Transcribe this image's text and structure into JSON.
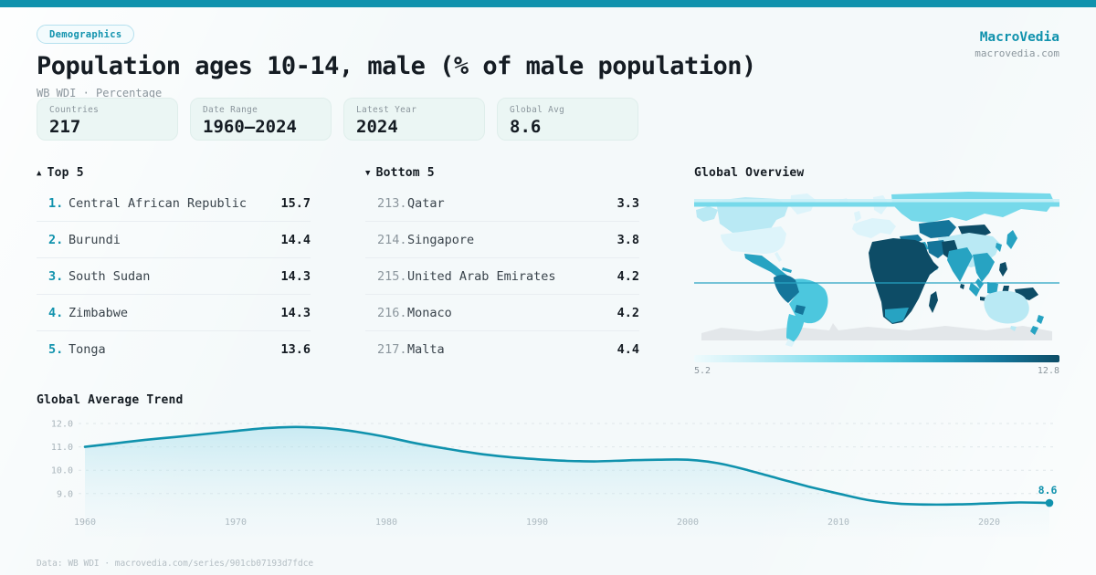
{
  "theme": {
    "accent": "#1092ad",
    "page_bg": "#f4f9fa",
    "text_dark": "#151c23",
    "text_row": "#39434b",
    "text_gray": "#8b969d",
    "text_light": "#b3bdc3",
    "card_bg": "#ebf6f4",
    "card_border": "#dfeeeb",
    "separator": "#e9eef2",
    "grid": "#dfe7ea",
    "tick": "#a9b4bb",
    "badge_bg": "#f3fbfd",
    "badge_border": "#b5e0ee",
    "map_pale": "#ddf4fa",
    "map_light": "#b9e9f4",
    "map_cyan": "#76d9ea",
    "map_midcyan": "#4cc7de",
    "map_mid": "#27a3c2",
    "map_middark": "#14759a",
    "map_dark": "#0d4c66",
    "map_ice": "#e3e7ea"
  },
  "header": {
    "badge": "Demographics",
    "title": "Population ages 10-14, male (% of male population)",
    "subtitle": "WB WDI · Percentage",
    "brand_name": "MacroVedia",
    "brand_domain": "macrovedia.com"
  },
  "stats": [
    {
      "label": "Countries",
      "value": "217"
    },
    {
      "label": "Date Range",
      "value": "1960—2024"
    },
    {
      "label": "Latest Year",
      "value": "2024"
    },
    {
      "label": "Global Avg",
      "value": "8.6"
    }
  ],
  "top5": {
    "marker": "▲",
    "title": "Top 5",
    "rows": [
      {
        "rank": "1.",
        "name": "Central African Republic",
        "value": "15.7"
      },
      {
        "rank": "2.",
        "name": "Burundi",
        "value": "14.4"
      },
      {
        "rank": "3.",
        "name": "South Sudan",
        "value": "14.3"
      },
      {
        "rank": "4.",
        "name": "Zimbabwe",
        "value": "14.3"
      },
      {
        "rank": "5.",
        "name": "Tonga",
        "value": "13.6"
      }
    ]
  },
  "bottom5": {
    "marker": "▼",
    "title": "Bottom 5",
    "rows": [
      {
        "rank": "213.",
        "name": "Qatar",
        "value": "3.3"
      },
      {
        "rank": "214.",
        "name": "Singapore",
        "value": "3.8"
      },
      {
        "rank": "215.",
        "name": "United Arab Emirates",
        "value": "4.2"
      },
      {
        "rank": "216.",
        "name": "Monaco",
        "value": "4.2"
      },
      {
        "rank": "217.",
        "name": "Malta",
        "value": "4.4"
      }
    ]
  },
  "map": {
    "title": "Global Overview",
    "legend_min": "5.2",
    "legend_max": "12.8"
  },
  "chart_data": {
    "type": "line",
    "title": "Global Average Trend",
    "xlabel": "",
    "ylabel": "",
    "x": [
      1960,
      1962,
      1964,
      1966,
      1968,
      1970,
      1972,
      1974,
      1976,
      1978,
      1980,
      1982,
      1984,
      1986,
      1988,
      1990,
      1992,
      1994,
      1996,
      1998,
      2000,
      2002,
      2004,
      2006,
      2008,
      2010,
      2012,
      2014,
      2016,
      2018,
      2020,
      2022,
      2024
    ],
    "values": [
      11.0,
      11.15,
      11.3,
      11.42,
      11.55,
      11.68,
      11.8,
      11.85,
      11.8,
      11.65,
      11.42,
      11.15,
      10.92,
      10.72,
      10.57,
      10.47,
      10.4,
      10.38,
      10.42,
      10.45,
      10.45,
      10.3,
      10.0,
      9.65,
      9.3,
      9.0,
      8.72,
      8.57,
      8.53,
      8.54,
      8.58,
      8.62,
      8.6
    ],
    "x_ticks": [
      1960,
      1970,
      1980,
      1990,
      2000,
      2010,
      2020
    ],
    "y_ticks": [
      12.0,
      11.0,
      10.0,
      9.0
    ],
    "xlim": [
      1960,
      2024
    ],
    "ylim": [
      8.2,
      12.4
    ],
    "grid": true,
    "legend_position": "none",
    "end_label": "8.6"
  },
  "footer": {
    "text": "Data: WB WDI · macrovedia.com/series/901cb07193d7fdce"
  }
}
